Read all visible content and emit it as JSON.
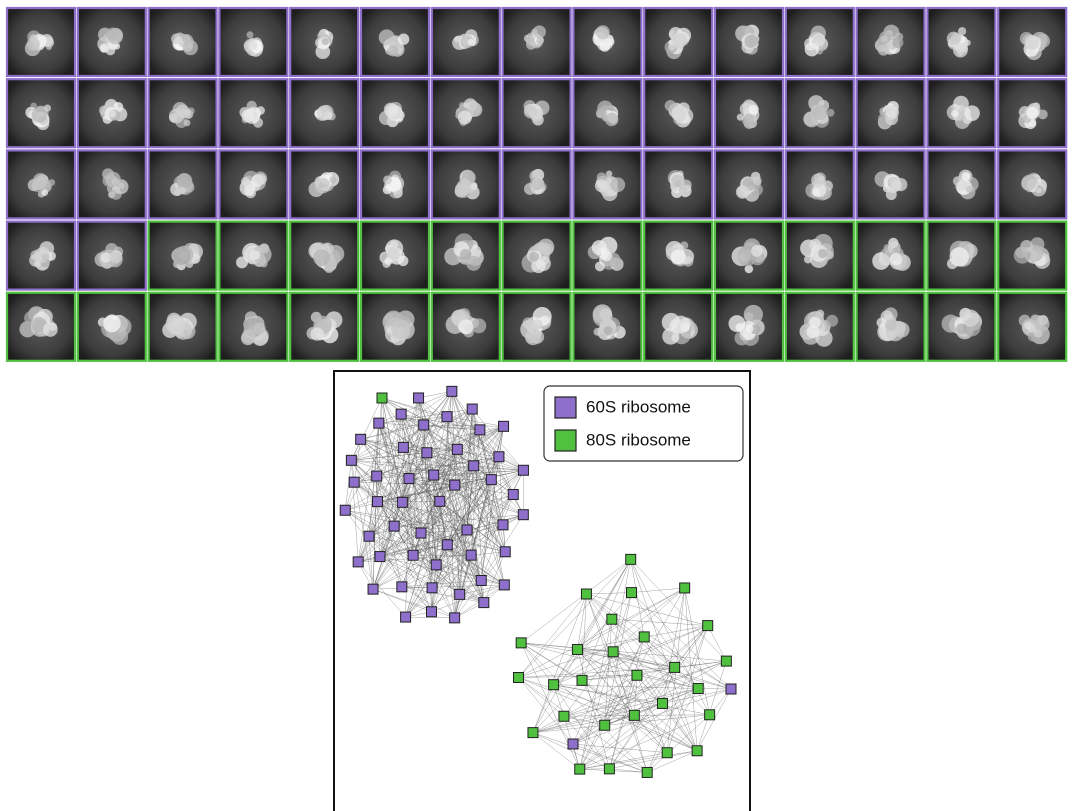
{
  "legend": [
    {
      "label": "60S ribosome",
      "color": "#8e6fcb"
    },
    {
      "label": "80S ribosome",
      "color": "#4fc13f"
    }
  ]
}
